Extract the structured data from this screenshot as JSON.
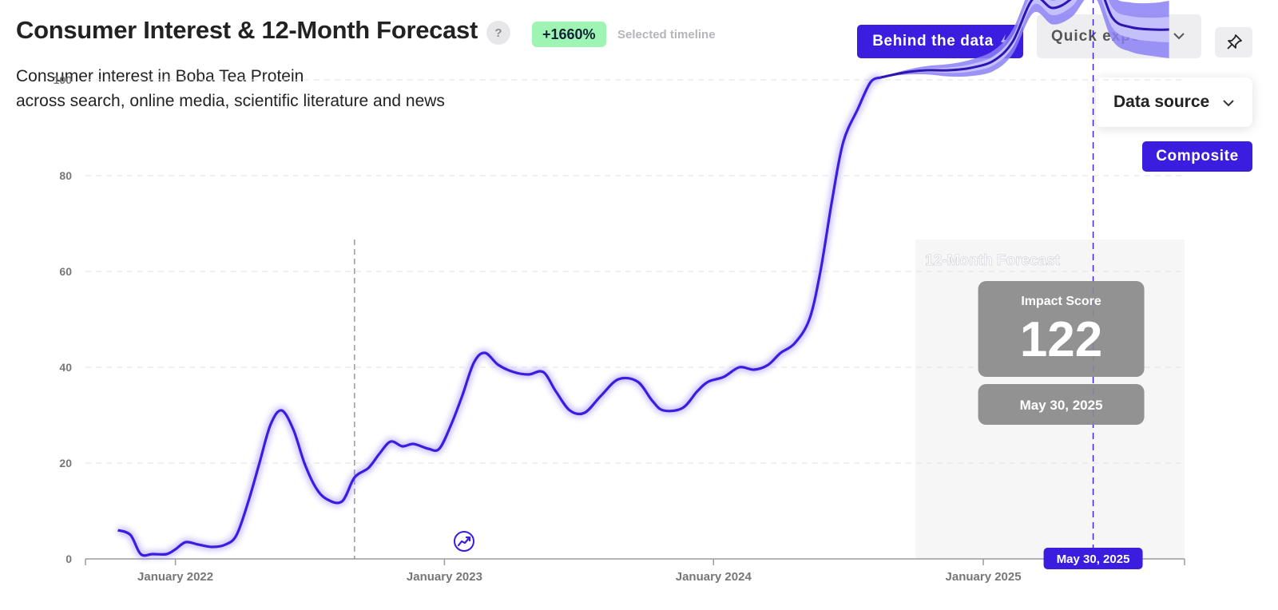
{
  "header": {
    "title": "Consumer Interest & 12-Month Forecast",
    "help_label": "?",
    "growth_badge": "+1660%",
    "timeline_label": "Selected timeline",
    "subtitle_line1": "Consumer interest in Boba Tea Protein",
    "subtitle_line2": "across search, online media, scientific literature and news"
  },
  "toolbar": {
    "behind_label": "Behind the data",
    "behind_icon": "lightning-icon",
    "export_label": "Quick export",
    "pin_icon": "pin-icon",
    "data_source_label": "Data source",
    "composite_label": "Composite"
  },
  "colors": {
    "accent": "#3b1de0",
    "forecast_band": "#8b80f5",
    "forecast_inner": "#c4c0fb",
    "growth_badge": "#9ef5b3",
    "tooltip": "#8a8a8a"
  },
  "chart_data": {
    "type": "line",
    "ylim": [
      0,
      125
    ],
    "yticks": [
      0,
      20,
      40,
      60,
      80,
      100
    ],
    "xlim": [
      "2021-09-01",
      "2025-10-01"
    ],
    "xticks": [
      {
        "date": "2022-01-01",
        "label": "January 2022"
      },
      {
        "date": "2023-01-01",
        "label": "January 2023"
      },
      {
        "date": "2024-01-01",
        "label": "January 2024"
      },
      {
        "date": "2025-01-01",
        "label": "January 2025"
      }
    ],
    "marker_date": "2022-09-01",
    "forecast_label": "12-Month Forecast",
    "forecast_start": "2024-10-01",
    "history": [
      [
        "2021-10-15",
        6
      ],
      [
        "2021-11-01",
        5
      ],
      [
        "2021-11-15",
        1
      ],
      [
        "2021-12-01",
        1
      ],
      [
        "2021-12-20",
        1
      ],
      [
        "2022-01-01",
        2
      ],
      [
        "2022-01-15",
        3.5
      ],
      [
        "2022-02-01",
        3
      ],
      [
        "2022-02-20",
        2.5
      ],
      [
        "2022-03-10",
        3
      ],
      [
        "2022-03-25",
        5
      ],
      [
        "2022-04-10",
        12
      ],
      [
        "2022-04-25",
        20
      ],
      [
        "2022-05-10",
        28
      ],
      [
        "2022-05-25",
        31
      ],
      [
        "2022-06-10",
        27
      ],
      [
        "2022-06-25",
        20
      ],
      [
        "2022-07-10",
        15
      ],
      [
        "2022-07-25",
        12.5
      ],
      [
        "2022-08-15",
        12
      ],
      [
        "2022-09-01",
        17
      ],
      [
        "2022-09-20",
        19
      ],
      [
        "2022-10-05",
        22
      ],
      [
        "2022-10-20",
        24.5
      ],
      [
        "2022-11-05",
        23.5
      ],
      [
        "2022-11-20",
        24
      ],
      [
        "2022-12-10",
        23
      ],
      [
        "2022-12-25",
        23
      ],
      [
        "2023-01-10",
        28
      ],
      [
        "2023-01-25",
        34
      ],
      [
        "2023-02-10",
        41
      ],
      [
        "2023-02-25",
        43
      ],
      [
        "2023-03-15",
        40.5
      ],
      [
        "2023-04-05",
        39
      ],
      [
        "2023-04-25",
        38.5
      ],
      [
        "2023-05-15",
        39
      ],
      [
        "2023-06-01",
        35
      ],
      [
        "2023-06-20",
        31
      ],
      [
        "2023-07-10",
        30.5
      ],
      [
        "2023-08-01",
        34
      ],
      [
        "2023-08-25",
        37.5
      ],
      [
        "2023-09-20",
        37
      ],
      [
        "2023-10-10",
        33
      ],
      [
        "2023-10-25",
        31
      ],
      [
        "2023-11-20",
        31.5
      ],
      [
        "2023-12-10",
        35
      ],
      [
        "2023-12-25",
        37
      ],
      [
        "2024-01-15",
        38
      ],
      [
        "2024-02-05",
        40
      ],
      [
        "2024-02-25",
        39.5
      ],
      [
        "2024-03-15",
        40.5
      ],
      [
        "2024-04-01",
        43
      ],
      [
        "2024-04-20",
        45
      ],
      [
        "2024-05-10",
        50
      ],
      [
        "2024-05-25",
        60
      ],
      [
        "2024-06-10",
        75
      ],
      [
        "2024-06-25",
        87
      ],
      [
        "2024-07-15",
        94
      ],
      [
        "2024-08-01",
        99.5
      ],
      [
        "2024-08-15",
        100.5
      ]
    ],
    "forecast": [
      [
        "2024-08-15",
        100.5
      ],
      [
        "2024-09-15",
        101.5
      ],
      [
        "2024-10-15",
        102
      ],
      [
        "2024-11-15",
        102
      ],
      [
        "2024-12-15",
        102.5
      ],
      [
        "2025-01-15",
        104
      ],
      [
        "2025-02-10",
        108
      ],
      [
        "2025-03-10",
        117
      ],
      [
        "2025-04-05",
        115
      ],
      [
        "2025-05-01",
        117
      ],
      [
        "2025-05-30",
        122
      ],
      [
        "2025-06-25",
        113
      ],
      [
        "2025-07-20",
        111
      ],
      [
        "2025-08-20",
        110.5
      ],
      [
        "2025-09-10",
        110.5
      ]
    ],
    "reference_value": 122,
    "reference_value_label": "122",
    "reference_date": "2025-05-30",
    "tooltip": {
      "title": "Impact Score",
      "value": "122",
      "date": "May 30, 2025"
    },
    "trend_icon": "trend-icon"
  }
}
